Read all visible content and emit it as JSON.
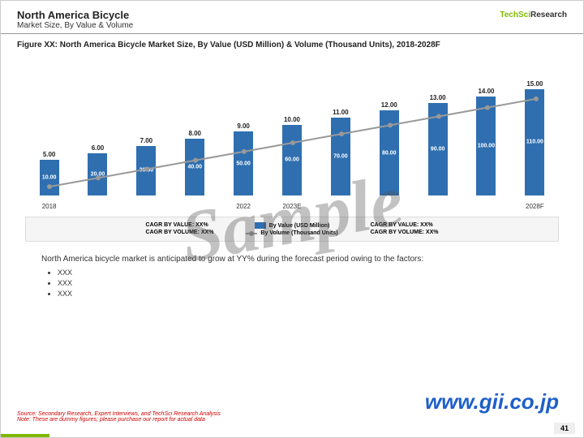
{
  "header": {
    "title": "North America Bicycle",
    "subtitle": "Market Size, By Value & Volume"
  },
  "logo": {
    "brand": "TechSci",
    "suffix": "Research"
  },
  "figure_title": "Figure XX: North America Bicycle Market Size, By Value (USD Million) & Volume (Thousand Units), 2018-2028F",
  "chart": {
    "type": "bar+line",
    "categories": [
      "2018",
      "",
      "",
      "",
      "2022",
      "2023E",
      "",
      "",
      "",
      "",
      "2028F"
    ],
    "bar_series": {
      "name": "By Value (USD Million)",
      "color": "#2f6fb0",
      "values": [
        5,
        6,
        7,
        8,
        9,
        10,
        11,
        12,
        13,
        14,
        15
      ],
      "labels": [
        "5.00",
        "6.00",
        "7.00",
        "8.00",
        "9.00",
        "10.00",
        "11.00",
        "12.00",
        "13.00",
        "14.00",
        "15.00"
      ]
    },
    "line_series": {
      "name": "By Volume (Thousand Units)",
      "color": "#999999",
      "values": [
        10,
        20,
        30,
        40,
        50,
        60,
        70,
        80,
        90,
        100,
        110
      ],
      "labels": [
        "10.00",
        "20.00",
        "30.00",
        "40.00",
        "50.00",
        "60.00",
        "70.00",
        "80.00",
        "90.00",
        "100.00",
        "110.00"
      ]
    },
    "y_max": 16
  },
  "legend": {
    "left": [
      "CAGR BY VALUE: XX%",
      "CAGR BY VOLUME: XX%"
    ],
    "right": [
      "CAGR BY VALUE: XX%",
      "CAGR BY VOLUME: XX%"
    ],
    "series1": "By Value (USD Million)",
    "series2": "By Volume (Thousand Units)"
  },
  "body": {
    "intro": "North America bicycle market is anticipated to grow at YY% during the forecast period owing to the factors:",
    "bullets": [
      "XXX",
      "XXX",
      "XXX"
    ]
  },
  "watermark": "Sample",
  "url": "www.gii.co.jp",
  "source": "Source: Secondary Research, Expert Interviews, and TechSci Research Analysis",
  "note": "Note: These are dummy figures; please purchase our report for actual data",
  "page_number": "41"
}
